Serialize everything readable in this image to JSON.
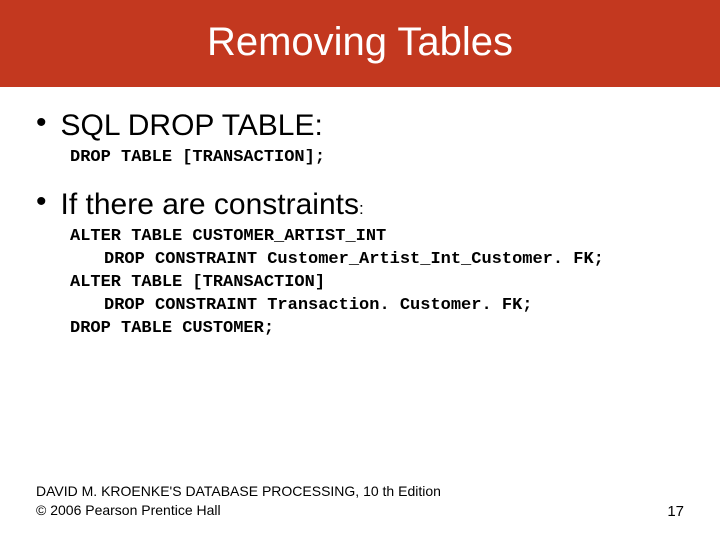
{
  "colors": {
    "title_bg": "#c3381f",
    "title_text": "#ffffff",
    "body_bg": "#ffffff",
    "body_text": "#000000"
  },
  "typography": {
    "title_fontsize": 40,
    "bullet_fontsize": 30,
    "code_fontsize": 17,
    "code_font": "Courier New, monospace",
    "code_weight": "bold",
    "footer_fontsize": 14
  },
  "title": "Removing Tables",
  "bullets": [
    {
      "text": "SQL DROP TABLE:",
      "code": [
        {
          "indent": 0,
          "line": "DROP TABLE [TRANSACTION];"
        }
      ]
    },
    {
      "text": "If there are constraints",
      "suffix": ":",
      "code": [
        {
          "indent": 0,
          "line": "ALTER TABLE CUSTOMER_ARTIST_INT"
        },
        {
          "indent": 1,
          "line": "DROP CONSTRAINT Customer_Artist_Int_Customer. FK;"
        },
        {
          "indent": 0,
          "line": "ALTER TABLE [TRANSACTION]"
        },
        {
          "indent": 1,
          "line": "DROP CONSTRAINT  Transaction. Customer. FK;"
        },
        {
          "indent": 0,
          "line": "DROP TABLE CUSTOMER;"
        }
      ]
    }
  ],
  "footer": {
    "line1": "DAVID M. KROENKE'S DATABASE PROCESSING, 10 th Edition",
    "line2": "© 2006 Pearson Prentice Hall",
    "page": "17"
  }
}
